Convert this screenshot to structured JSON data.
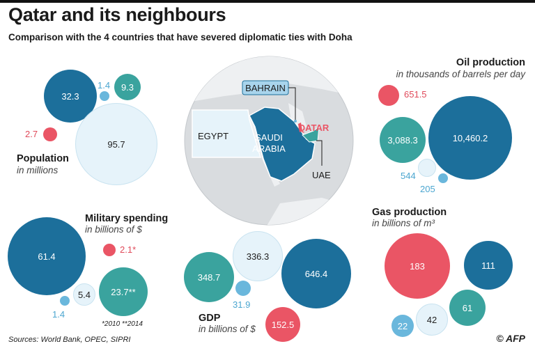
{
  "title": "Qatar and its neighbours",
  "subtitle": "Comparison with the 4 countries that have severed diplomatic ties with Doha",
  "colors": {
    "saudi_arabia": "#1c6f9b",
    "uae": "#3aa39e",
    "egypt": "#e6f3fa",
    "bahrain": "#6ab7dc",
    "qatar": "#ea5565"
  },
  "map": {
    "labels": {
      "bahrain": "BAHRAIN",
      "qatar": "QATAR",
      "egypt": "EGYPT",
      "saudi_line1": "SAUDI",
      "saudi_line2": "ARABIA",
      "uae": "UAE"
    }
  },
  "population": {
    "title": "Population",
    "unit": "in millions",
    "saudi_arabia": "32.3",
    "bahrain": "1.4",
    "uae": "9.3",
    "qatar": "2.7",
    "egypt": "95.7"
  },
  "oil": {
    "title": "Oil production",
    "unit": "in thousands of barrels per day",
    "qatar": "651.5",
    "uae": "3,088.3",
    "saudi_arabia": "10,460.2",
    "egypt": "544",
    "bahrain": "205"
  },
  "military": {
    "title": "Military spending",
    "unit": "in billions of $",
    "saudi_arabia": "61.4",
    "qatar": "2.1*",
    "egypt": "5.4",
    "uae": "23.7**",
    "bahrain": "1.4",
    "note": "*2010 **2014"
  },
  "gdp": {
    "title": "GDP",
    "unit": "in billions of $",
    "egypt": "336.3",
    "uae": "348.7",
    "saudi_arabia": "646.4",
    "bahrain": "31.9",
    "qatar": "152.5"
  },
  "gas": {
    "title": "Gas production",
    "unit": "in billions of m³",
    "qatar": "183",
    "saudi_arabia": "111",
    "uae": "61",
    "egypt": "42",
    "bahrain": "22"
  },
  "sources": "Sources: World Bank, OPEC, SIPRI",
  "credit": "© AFP"
}
